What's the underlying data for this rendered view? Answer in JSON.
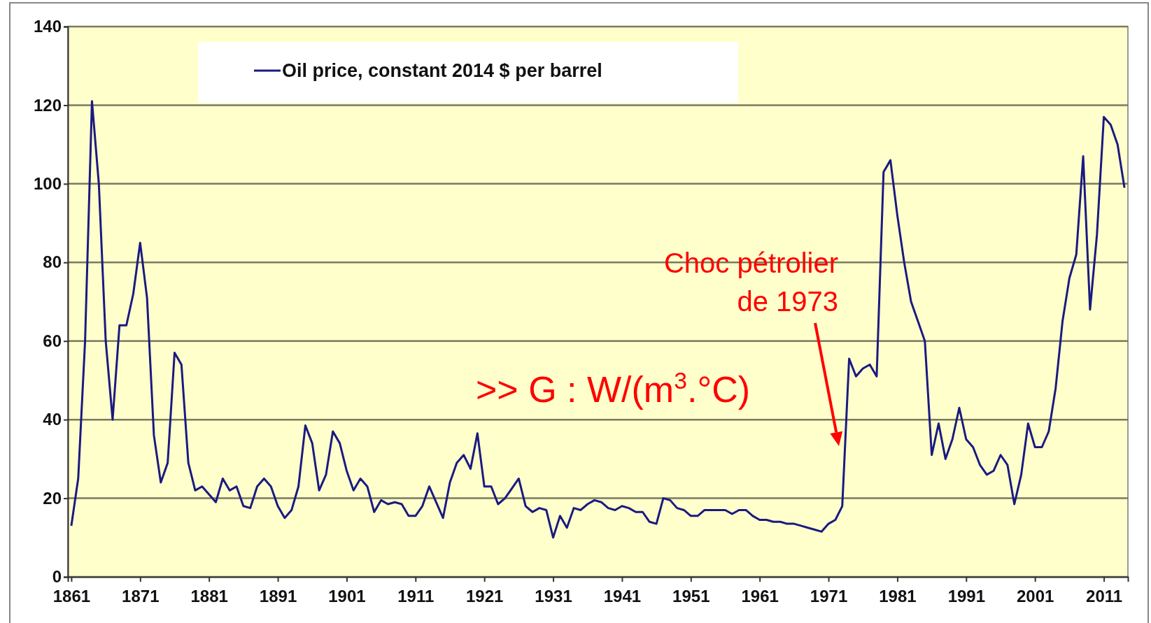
{
  "chart_data": {
    "type": "line",
    "x": [
      1861,
      1862,
      1863,
      1864,
      1865,
      1866,
      1867,
      1868,
      1869,
      1870,
      1871,
      1872,
      1873,
      1874,
      1875,
      1876,
      1877,
      1878,
      1879,
      1880,
      1881,
      1882,
      1883,
      1884,
      1885,
      1886,
      1887,
      1888,
      1889,
      1890,
      1891,
      1892,
      1893,
      1894,
      1895,
      1896,
      1897,
      1898,
      1899,
      1900,
      1901,
      1902,
      1903,
      1904,
      1905,
      1906,
      1907,
      1908,
      1909,
      1910,
      1911,
      1912,
      1913,
      1914,
      1915,
      1916,
      1917,
      1918,
      1919,
      1920,
      1921,
      1922,
      1923,
      1924,
      1925,
      1926,
      1927,
      1928,
      1929,
      1930,
      1931,
      1932,
      1933,
      1934,
      1935,
      1936,
      1937,
      1938,
      1939,
      1940,
      1941,
      1942,
      1943,
      1944,
      1945,
      1946,
      1947,
      1948,
      1949,
      1950,
      1951,
      1952,
      1953,
      1954,
      1955,
      1956,
      1957,
      1958,
      1959,
      1960,
      1961,
      1962,
      1963,
      1964,
      1965,
      1966,
      1967,
      1968,
      1969,
      1970,
      1971,
      1972,
      1973,
      1974,
      1975,
      1976,
      1977,
      1978,
      1979,
      1980,
      1981,
      1982,
      1983,
      1984,
      1985,
      1986,
      1987,
      1988,
      1989,
      1990,
      1991,
      1992,
      1993,
      1994,
      1995,
      1996,
      1997,
      1998,
      1999,
      2000,
      2001,
      2002,
      2003,
      2004,
      2005,
      2006,
      2007,
      2008,
      2009,
      2010,
      2011,
      2012,
      2013,
      2014
    ],
    "series": [
      {
        "name": "Oil price, constant 2014 $ per barrel",
        "color": "#1a1a80",
        "values": [
          13,
          25,
          60,
          121,
          100,
          60,
          40,
          64,
          64,
          72,
          85,
          71,
          36,
          24,
          29,
          57,
          54,
          29,
          22,
          23,
          21,
          19,
          25,
          22,
          23,
          18,
          17.5,
          23,
          25,
          23,
          18,
          15,
          17,
          23,
          38.5,
          34,
          22,
          26,
          37,
          34,
          27,
          22,
          25,
          23,
          16.5,
          19.5,
          18.5,
          19,
          18.5,
          15.5,
          15.5,
          18,
          23,
          19,
          15,
          24,
          29,
          31,
          27.5,
          36.5,
          23,
          23,
          18.5,
          20,
          22.5,
          25,
          18,
          16.5,
          17.5,
          17,
          10,
          15.5,
          12.5,
          17.5,
          17,
          18.5,
          19.5,
          19,
          17.5,
          17,
          18,
          17.5,
          16.5,
          16.5,
          14,
          13.5,
          20,
          19.5,
          17.5,
          17,
          15.5,
          15.5,
          17,
          17,
          17,
          17,
          16,
          17,
          17,
          15.5,
          14.5,
          14.5,
          14,
          14,
          13.5,
          13.5,
          13,
          12.5,
          12,
          11.5,
          13.5,
          14.5,
          18,
          55.5,
          51,
          53,
          54,
          51,
          103,
          106,
          92,
          80,
          70,
          65,
          60,
          31,
          39,
          30,
          35,
          43,
          35,
          33,
          28.5,
          26,
          27,
          31,
          28.5,
          18.5,
          26,
          39,
          33,
          33,
          37,
          48,
          65,
          76,
          82,
          107,
          68,
          87,
          117,
          115,
          110,
          99
        ]
      }
    ],
    "xlim": [
      1860.5,
      2014.5
    ],
    "xticks": [
      1861,
      1871,
      1881,
      1891,
      1901,
      1911,
      1921,
      1931,
      1941,
      1951,
      1961,
      1971,
      1981,
      1991,
      2001,
      2011
    ],
    "ylim": [
      0,
      140
    ],
    "yticks": [
      0,
      20,
      40,
      60,
      80,
      100,
      120,
      140
    ],
    "grid": "y",
    "legend": "top",
    "marker": "none",
    "line_style": "solid",
    "annotations": [
      "Choc pétrolier de 1973",
      ">> G : W/(m$^{3}$.°C)"
    ]
  }
}
